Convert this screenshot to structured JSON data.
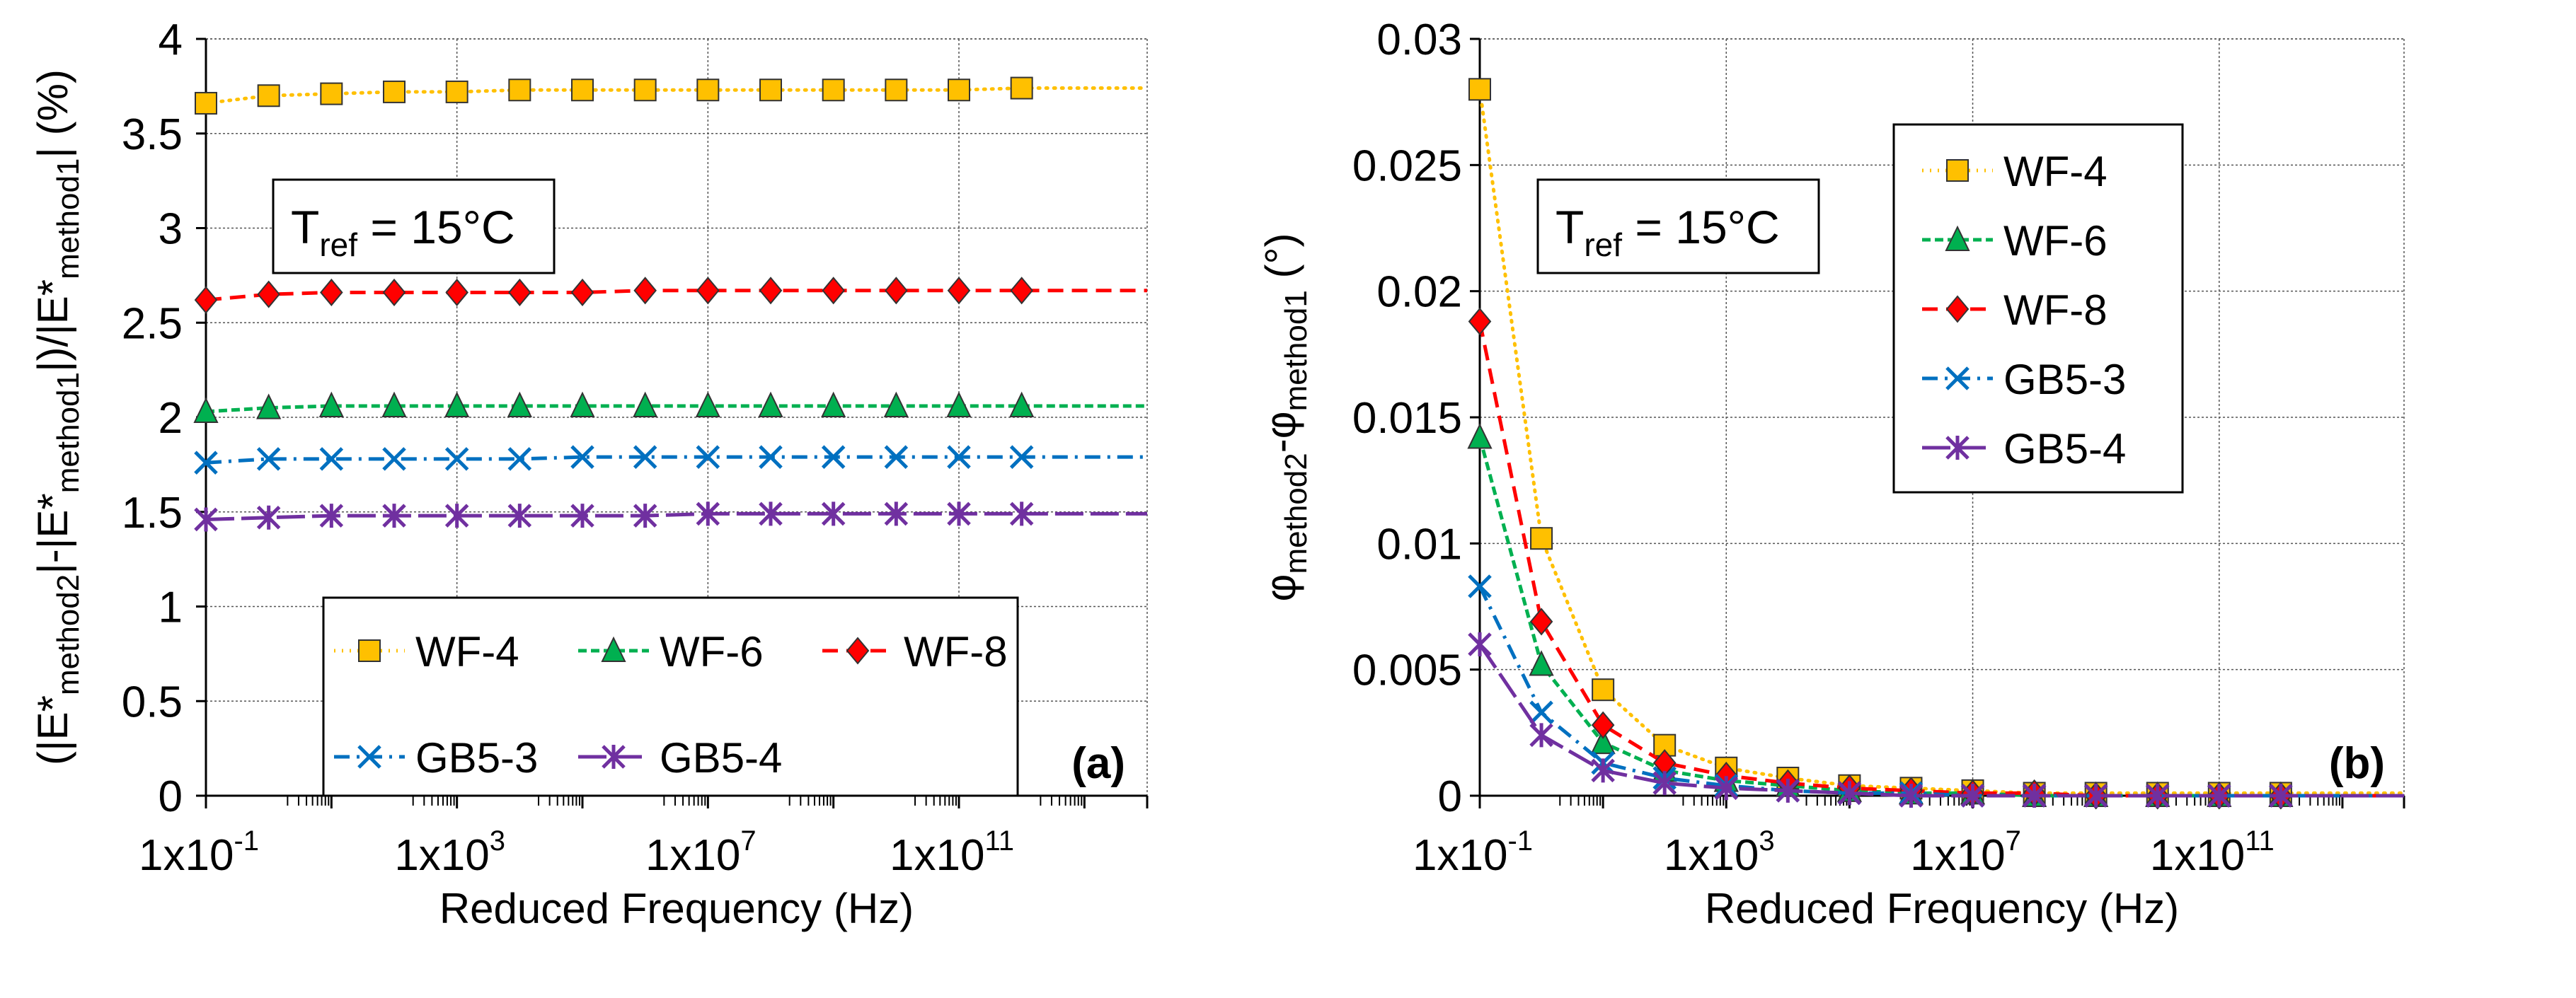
{
  "colors": {
    "WF-4": "#FFC000",
    "WF-6": "#00B050",
    "WF-8": "#FF0000",
    "GB5-3": "#0070C0",
    "GB5-4": "#7030A0"
  },
  "chart_data": [
    {
      "type": "line",
      "panel_label": "(a)",
      "annotation": {
        "main": "T",
        "sub": "ref",
        "rest": " = 15°C"
      },
      "xlabel": "Reduced Frequency (Hz)",
      "ylabel_parts": [
        [
          "(|E*",
          ""
        ],
        [
          "method2",
          "sub"
        ],
        [
          "|-|E*",
          ""
        ],
        [
          "method1",
          "sub"
        ],
        [
          "|)/|E*",
          ""
        ],
        [
          "method1",
          "sub"
        ],
        [
          "| (%)",
          ""
        ]
      ],
      "x_scale": "log",
      "xlim": [
        0.1,
        100000000000000.0
      ],
      "x_ticks": [
        {
          "value": 0.1,
          "base": "1x10",
          "exp": "-1"
        },
        {
          "value": 1000,
          "base": "1x10",
          "exp": "3"
        },
        {
          "value": 10000000.0,
          "base": "1x10",
          "exp": "7"
        },
        {
          "value": 100000000000.0,
          "base": "1x10",
          "exp": "11"
        }
      ],
      "ylim": [
        0,
        4
      ],
      "y_ticks": [
        "0",
        "0.5",
        "1",
        "1.5",
        "2",
        "2.5",
        "3",
        "3.5",
        "4"
      ],
      "legend_placement": "bottom-center, 3 columns",
      "grid": true,
      "x": [
        0.1,
        1,
        10,
        100,
        1000,
        10000.0,
        100000.0,
        1000000.0,
        10000000.0,
        100000000.0,
        1000000000.0,
        10000000000.0,
        100000000000.0,
        1000000000000.0
      ],
      "series": [
        {
          "name": "WF-4",
          "marker": "square",
          "line": "dotted",
          "values": [
            3.66,
            3.7,
            3.71,
            3.72,
            3.72,
            3.73,
            3.73,
            3.73,
            3.73,
            3.73,
            3.73,
            3.73,
            3.73,
            3.74
          ]
        },
        {
          "name": "WF-6",
          "marker": "triangle",
          "line": "dashed-short",
          "values": [
            2.03,
            2.05,
            2.06,
            2.06,
            2.06,
            2.06,
            2.06,
            2.06,
            2.06,
            2.06,
            2.06,
            2.06,
            2.06,
            2.06
          ]
        },
        {
          "name": "WF-8",
          "marker": "diamond",
          "line": "dashed",
          "values": [
            2.62,
            2.65,
            2.66,
            2.66,
            2.66,
            2.66,
            2.66,
            2.67,
            2.67,
            2.67,
            2.67,
            2.67,
            2.67,
            2.67
          ]
        },
        {
          "name": "GB5-3",
          "marker": "x",
          "line": "dash-dot",
          "values": [
            1.76,
            1.78,
            1.78,
            1.78,
            1.78,
            1.78,
            1.79,
            1.79,
            1.79,
            1.79,
            1.79,
            1.79,
            1.79,
            1.79
          ]
        },
        {
          "name": "GB5-4",
          "marker": "asterisk",
          "line": "long-dash",
          "values": [
            1.46,
            1.47,
            1.48,
            1.48,
            1.48,
            1.48,
            1.48,
            1.48,
            1.49,
            1.49,
            1.49,
            1.49,
            1.49,
            1.49
          ]
        }
      ]
    },
    {
      "type": "line",
      "panel_label": "(b)",
      "annotation": {
        "main": "T",
        "sub": "ref",
        "rest": " = 15°C"
      },
      "xlabel": "Reduced Frequency (Hz)",
      "ylabel_parts": [
        [
          "φ",
          ""
        ],
        [
          "method2",
          "sub"
        ],
        [
          "-φ",
          ""
        ],
        [
          "method1",
          "sub"
        ],
        [
          "  (°)",
          ""
        ]
      ],
      "x_scale": "log",
      "xlim": [
        0.1,
        100000000000000.0
      ],
      "x_ticks": [
        {
          "value": 0.1,
          "base": "1x10",
          "exp": "-1"
        },
        {
          "value": 1000,
          "base": "1x10",
          "exp": "3"
        },
        {
          "value": 10000000.0,
          "base": "1x10",
          "exp": "7"
        },
        {
          "value": 100000000000.0,
          "base": "1x10",
          "exp": "11"
        }
      ],
      "ylim": [
        0,
        0.03
      ],
      "y_ticks": [
        "0",
        "0.005",
        "0.01",
        "0.015",
        "0.02",
        "0.025",
        "0.03"
      ],
      "legend_placement": "top-center, 1 column",
      "grid": true,
      "x": [
        0.1,
        1,
        10,
        100,
        1000,
        10000.0,
        100000.0,
        1000000.0,
        10000000.0,
        100000000.0,
        1000000000.0,
        10000000000.0,
        100000000000.0,
        1000000000000.0
      ],
      "series": [
        {
          "name": "WF-4",
          "marker": "square",
          "line": "dotted",
          "values": [
            0.028,
            0.0102,
            0.0042,
            0.002,
            0.0011,
            0.0007,
            0.0004,
            0.0003,
            0.0002,
            0.0001,
            0.0001,
            0.0001,
            0.0001,
            0.0001
          ]
        },
        {
          "name": "WF-6",
          "marker": "triangle",
          "line": "dashed-short",
          "values": [
            0.0142,
            0.0052,
            0.0021,
            0.001,
            0.0006,
            0.0004,
            0.0002,
            0.0001,
            0.0001,
            0.0,
            0.0,
            0.0,
            0.0,
            0.0
          ]
        },
        {
          "name": "WF-8",
          "marker": "diamond",
          "line": "dashed",
          "values": [
            0.0188,
            0.0069,
            0.0028,
            0.0013,
            0.0008,
            0.0005,
            0.0003,
            0.0002,
            0.0001,
            0.0001,
            0.0,
            0.0,
            0.0,
            0.0
          ]
        },
        {
          "name": "GB5-3",
          "marker": "x",
          "line": "dash-dot",
          "values": [
            0.0083,
            0.0033,
            0.0013,
            0.0007,
            0.0004,
            0.0002,
            0.0001,
            0.0001,
            0.0,
            0.0,
            0.0,
            0.0,
            0.0,
            0.0
          ]
        },
        {
          "name": "GB5-4",
          "marker": "asterisk",
          "line": "long-dash",
          "values": [
            0.006,
            0.0024,
            0.001,
            0.0005,
            0.0003,
            0.0002,
            0.0001,
            0.0,
            0.0,
            0.0,
            0.0,
            0.0,
            0.0,
            0.0
          ]
        }
      ]
    }
  ]
}
